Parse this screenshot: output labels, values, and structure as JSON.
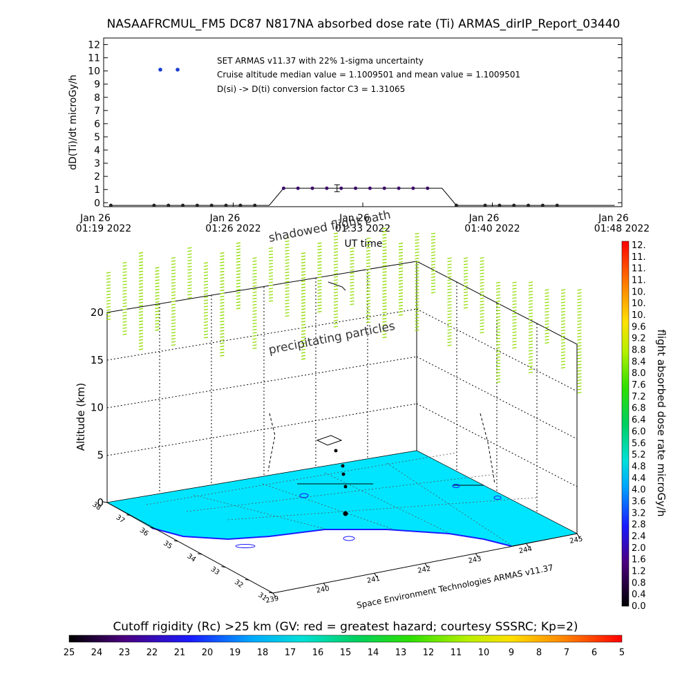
{
  "title": "NASAAFRCMUL_FM5 DC87 N817NA absorbed dose rate (Ti) ARMAS_dirIP_Report_03440",
  "chart_data": [
    {
      "type": "line",
      "ylabel": "dD(Ti)/dt microGy/h",
      "xlabel": "UT time",
      "y_ticks": [
        0,
        1,
        2,
        3,
        4,
        5,
        6,
        7,
        8,
        9,
        10,
        11,
        12
      ],
      "ylim": [
        -0.3,
        12.5
      ],
      "x_ticks": [
        {
          "l1": "Jan 26",
          "l2": "01:19 2022"
        },
        {
          "l1": "Jan 26",
          "l2": "01:26 2022"
        },
        {
          "l1": "Jan 26",
          "l2": "01:33 2022"
        },
        {
          "l1": "Jan 26",
          "l2": "01:40 2022"
        },
        {
          "l1": "Jan 26",
          "l2": "01:48 2022"
        }
      ],
      "annotations": [
        "SET ARMAS v11.37 with 22% 1-sigma uncertainty",
        "Cruise altitude median value = 1.1009501 and mean value = 1.1009501",
        "D(si) -> D(ti) conversion factor C3 = 1.31065"
      ],
      "legend_marker_value": 10.1,
      "series": [
        {
          "values": [
            -0.2,
            -0.2,
            -0.2,
            -0.2,
            -0.2,
            -0.2,
            -0.2,
            -0.2,
            -0.2,
            -0.2,
            -0.2,
            -0.2,
            1.1,
            1.1,
            1.1,
            1.1,
            1.1,
            1.1,
            1.1,
            1.1,
            1.1,
            1.1,
            1.1,
            1.1,
            -0.2,
            -0.2,
            -0.2,
            -0.2,
            -0.2,
            -0.2,
            -0.2,
            -0.2,
            -0.2,
            -0.2,
            -0.2,
            -0.2
          ],
          "dots": [
            true,
            false,
            false,
            true,
            true,
            true,
            true,
            true,
            true,
            true,
            true,
            false,
            true,
            true,
            true,
            true,
            true,
            true,
            true,
            true,
            true,
            true,
            true,
            false,
            true,
            false,
            true,
            true,
            true,
            true,
            true,
            true,
            false,
            false,
            false,
            false
          ],
          "error_bar_index": 16
        }
      ]
    },
    {
      "type": "surface-3d",
      "zlabel": "Altitude (km)",
      "z_ticks": [
        0,
        5,
        10,
        15,
        20
      ],
      "lat_ticks": [
        38,
        37,
        36,
        35,
        34,
        33,
        32,
        31
      ],
      "lon_ticks": [
        239,
        240,
        241,
        242,
        243,
        244,
        245
      ],
      "annotations": [
        "shadowed flight path",
        "precipitating particles",
        "Space Environment Technologies ARMAS v11.37"
      ],
      "surface_color": "#00e5ff"
    },
    {
      "type": "colorbar",
      "label": "flight absorbed dose rate microGy/h",
      "ticks": [
        "12.",
        "11.",
        "11.",
        "11.",
        "10.",
        "10.",
        "10.",
        "9.6",
        "9.2",
        "8.8",
        "8.4",
        "8.0",
        "7.6",
        "7.2",
        "6.8",
        "6.4",
        "6.0",
        "5.6",
        "5.2",
        "4.8",
        "4.4",
        "4.0",
        "3.6",
        "3.2",
        "2.8",
        "2.4",
        "2.0",
        "1.6",
        "1.2",
        "0.8",
        "0.4",
        "0.0"
      ]
    },
    {
      "type": "colorbar",
      "label": "Cutoff rigidity (Rc) >25 km (GV: red = greatest hazard; courtesy SSSRC; Kp=2)",
      "ticks": [
        "25",
        "24",
        "23",
        "22",
        "21",
        "20",
        "19",
        "18",
        "17",
        "16",
        "15",
        "14",
        "13",
        "12",
        "11",
        "10",
        "9",
        "8",
        "7",
        "6",
        "5"
      ]
    }
  ]
}
